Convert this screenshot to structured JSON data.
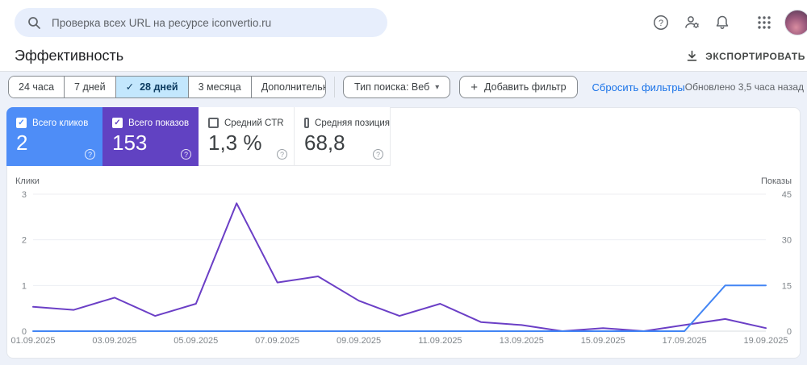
{
  "header": {
    "search_placeholder": "Проверка всех URL на ресурсе iconvertio.ru",
    "icons": [
      "search",
      "help",
      "account-settings",
      "notifications",
      "apps",
      "avatar"
    ]
  },
  "page": {
    "title": "Эффективность",
    "export_label": "ЭКСПОРТИРОВАТЬ",
    "updated": "Обновлено 3,5 часа назад"
  },
  "filters": {
    "date_ranges": [
      "24 часа",
      "7 дней",
      "28 дней",
      "3 месяца"
    ],
    "selected_range": "28 дней",
    "more_label": "Дополнительно",
    "search_type_label": "Тип поиска: Веб",
    "add_filter_label": "Добавить фильтр",
    "reset_label": "Сбросить фильтры"
  },
  "icons": {
    "check": "✓",
    "caret": "▾",
    "plus": "+",
    "question": "?"
  },
  "metrics": [
    {
      "label": "Всего кликов",
      "value": "2",
      "checked": true,
      "bg": "#4e8df7"
    },
    {
      "label": "Всего показов",
      "value": "153",
      "checked": true,
      "bg": "#6142c2"
    },
    {
      "label": "Средний CTR",
      "value": "1,3 %",
      "checked": false,
      "bg": null
    },
    {
      "label": "Средняя позиция",
      "value": "68,8",
      "checked": false,
      "bg": null
    }
  ],
  "chart_data": {
    "type": "line",
    "x": [
      "01.09.2025",
      "02.09.2025",
      "03.09.2025",
      "04.09.2025",
      "05.09.2025",
      "06.09.2025",
      "07.09.2025",
      "08.09.2025",
      "09.09.2025",
      "10.09.2025",
      "11.09.2025",
      "12.09.2025",
      "13.09.2025",
      "14.09.2025",
      "15.09.2025",
      "16.09.2025",
      "17.09.2025",
      "18.09.2025",
      "19.09.2025"
    ],
    "x_tick_every": 2,
    "left_axis": {
      "label": "Клики",
      "ticks": [
        0,
        1,
        2,
        3
      ],
      "max": 3
    },
    "right_axis": {
      "label": "Показы",
      "ticks": [
        0,
        15,
        30,
        45
      ],
      "max": 45
    },
    "grid": true,
    "series": [
      {
        "name": "Всего показов",
        "axis": "right",
        "color": "#6b3fc6",
        "values": [
          8,
          7,
          11,
          5,
          9,
          42,
          16,
          18,
          10,
          5,
          9,
          3,
          2,
          0,
          1,
          0,
          2,
          4,
          1
        ]
      },
      {
        "name": "Всего кликов",
        "axis": "left",
        "color": "#4285f4",
        "values": [
          0,
          0,
          0,
          0,
          0,
          0,
          0,
          0,
          0,
          0,
          0,
          0,
          0,
          0,
          0,
          0,
          0,
          1,
          1
        ]
      }
    ]
  }
}
